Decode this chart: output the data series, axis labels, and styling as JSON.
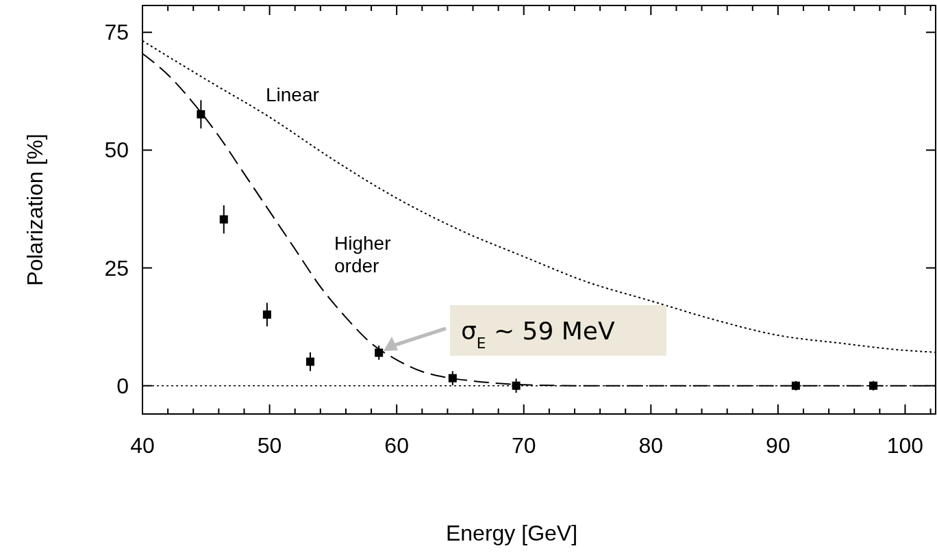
{
  "chart_data": {
    "type": "scatter",
    "xlabel": "Energy [GeV]",
    "ylabel": "Polarization [%]",
    "xlim": [
      40,
      102.4
    ],
    "ylim": [
      -6,
      80.7
    ],
    "xticks": [
      40,
      {
        "value": 42,
        "label": null
      },
      {
        "value": 44,
        "label": null
      },
      {
        "value": 46,
        "label": null
      },
      {
        "value": 48,
        "label": null
      },
      50,
      {
        "value": 52,
        "label": null
      },
      {
        "value": 54,
        "label": null
      },
      {
        "value": 56,
        "label": null
      },
      {
        "value": 58,
        "label": null
      },
      60,
      {
        "value": 62,
        "label": null
      },
      {
        "value": 64,
        "label": null
      },
      {
        "value": 66,
        "label": null
      },
      {
        "value": 68,
        "label": null
      },
      70,
      {
        "value": 72,
        "label": null
      },
      {
        "value": 74,
        "label": null
      },
      {
        "value": 76,
        "label": null
      },
      {
        "value": 78,
        "label": null
      },
      80,
      {
        "value": 82,
        "label": null
      },
      {
        "value": 84,
        "label": null
      },
      {
        "value": 86,
        "label": null
      },
      {
        "value": 88,
        "label": null
      },
      90,
      {
        "value": 92,
        "label": null
      },
      {
        "value": 94,
        "label": null
      },
      {
        "value": 96,
        "label": null
      },
      {
        "value": 98,
        "label": null
      },
      100,
      {
        "value": 102,
        "label": null
      }
    ],
    "yticks": [
      0,
      25,
      50,
      75
    ],
    "grid": false,
    "series": [
      {
        "color": "#000000",
        "marker": "square",
        "x": [
          44.6,
          46.4,
          49.8,
          53.2,
          58.6,
          64.4,
          69.4,
          91.4,
          97.5
        ],
        "values": [
          57.6,
          35.3,
          15.1,
          5.1,
          7.0,
          1.6,
          0,
          0,
          0
        ],
        "errors": [
          3,
          3,
          2.5,
          2,
          1.5,
          1.5,
          1.5,
          1,
          1
        ]
      },
      {
        "type": "line",
        "color": "#000000",
        "line_style": "dashed",
        "marker": "none",
        "x": [
          40,
          42,
          44,
          46,
          48,
          50,
          52,
          54,
          56,
          58,
          60,
          62,
          64,
          66,
          68,
          70,
          75,
          102.4
        ],
        "values": [
          70.5,
          66,
          60,
          53,
          45,
          37,
          29,
          21,
          14.5,
          9,
          5.5,
          3,
          1.7,
          1,
          0.5,
          0.2,
          0,
          0
        ]
      },
      {
        "type": "line",
        "color": "#000000",
        "line_style": "dotted",
        "marker": "none",
        "x": [
          40,
          45,
          50,
          55,
          60,
          65,
          70,
          75,
          80,
          85,
          90,
          95,
          100,
          102.4
        ],
        "values": [
          73.2,
          65,
          57,
          48,
          39.8,
          33,
          27.4,
          22,
          18,
          14,
          10.7,
          9,
          7.5,
          7.1
        ]
      }
    ],
    "ref_lines": [
      {
        "axis": "y",
        "value": 0,
        "color": "#000000",
        "line_style": "dotted"
      }
    ],
    "annotations": [
      "Linear",
      "Higher order",
      "σ$_{E}$ ~ 59 MeV"
    ]
  }
}
